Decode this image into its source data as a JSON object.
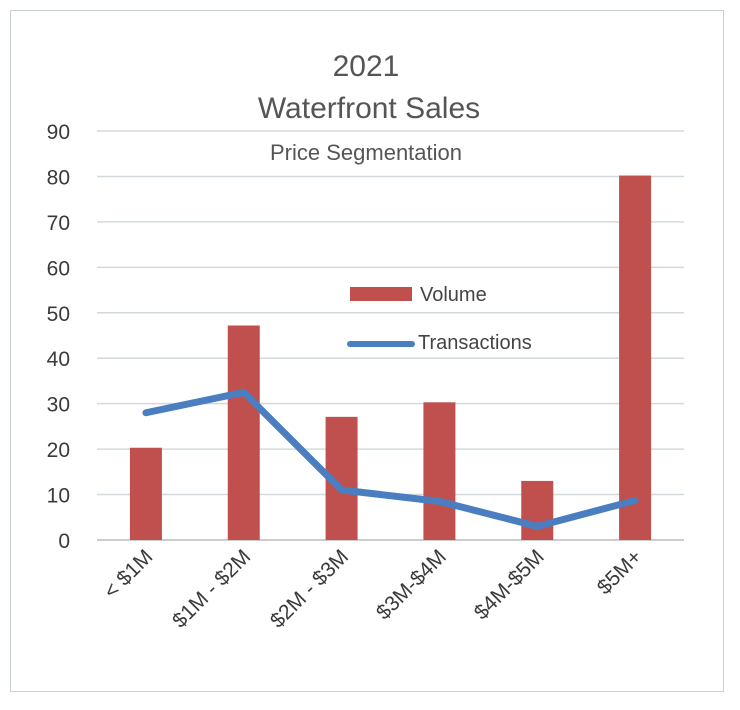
{
  "chart_data": {
    "type": "bar",
    "title_line1": "2021",
    "title_line2": "Waterfront Sales",
    "subtitle": "Price Segmentation",
    "categories": [
      "< $1M",
      "$1M - $2M",
      "$2M - $3M",
      "$3M-$4M",
      "$4M-$5M",
      "$5M+"
    ],
    "yticks": [
      "0",
      "10",
      "20",
      "30",
      "40",
      "50",
      "60",
      "70",
      "80",
      "90"
    ],
    "ylim": [
      0,
      90
    ],
    "grid": true,
    "legend_position": "center",
    "series": [
      {
        "name": "Volume",
        "kind": "bar",
        "color": "#c0504d",
        "values": [
          20.3,
          47.2,
          27.1,
          30.3,
          13.0,
          80.2
        ]
      },
      {
        "name": "Transactions",
        "kind": "line",
        "color": "#4a7ec1",
        "values": [
          28,
          32.5,
          11,
          8.5,
          3,
          8.7
        ]
      }
    ]
  }
}
